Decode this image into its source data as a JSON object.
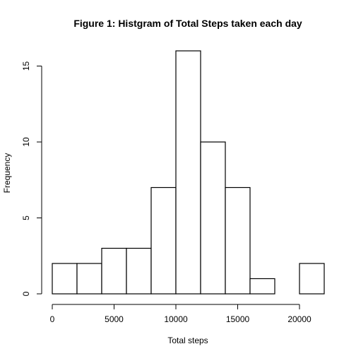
{
  "chart_data": {
    "type": "bar",
    "subtype": "histogram",
    "title": "Figure 1: Histgram of Total Steps taken each day",
    "xlabel": "Total steps",
    "ylabel": "Frequency",
    "bin_edges": [
      0,
      2000,
      4000,
      6000,
      8000,
      10000,
      12000,
      14000,
      16000,
      18000,
      20000,
      22000
    ],
    "values": [
      2,
      2,
      3,
      3,
      7,
      16,
      10,
      7,
      1,
      0,
      2
    ],
    "xlim": [
      0,
      22000
    ],
    "ylim": [
      0,
      16
    ],
    "x_ticks": [
      0,
      5000,
      10000,
      15000,
      20000
    ],
    "x_tick_labels": [
      "0",
      "5000",
      "10000",
      "15000",
      "20000"
    ],
    "y_ticks": [
      0,
      5,
      10,
      15
    ],
    "y_tick_labels": [
      "0",
      "5",
      "10",
      "15"
    ],
    "grid": false,
    "legend": "none",
    "colors": {
      "bar_fill": "#ffffff",
      "bar_stroke": "#000000"
    }
  }
}
